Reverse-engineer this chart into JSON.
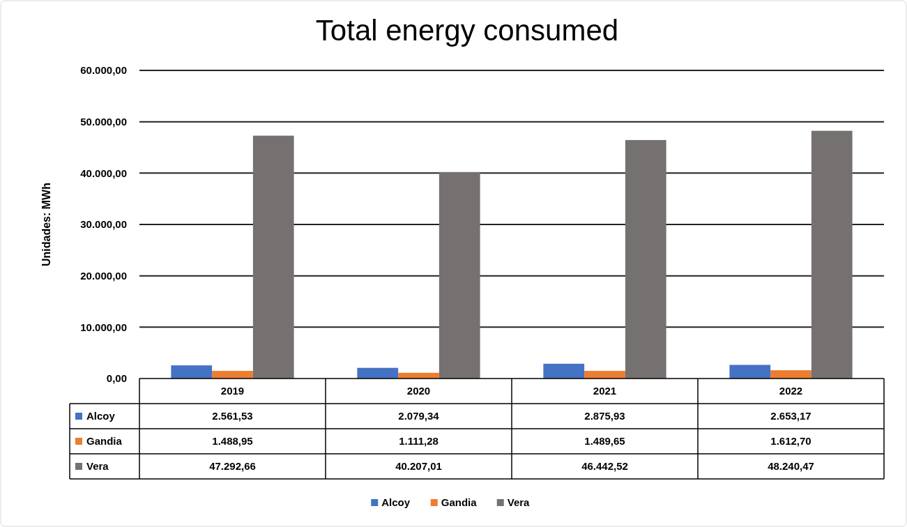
{
  "chart_data": {
    "type": "bar",
    "title": "Total energy consumed",
    "ylabel": "Unidades: MWh",
    "categories": [
      "2019",
      "2020",
      "2021",
      "2022"
    ],
    "series": [
      {
        "name": "Alcoy",
        "color": "#4472c4",
        "values": [
          2561.53,
          2079.34,
          2875.93,
          2653.17
        ],
        "value_labels": [
          "2.561,53",
          "2.079,34",
          "2.875,93",
          "2.653,17"
        ]
      },
      {
        "name": "Gandia",
        "color": "#ed7d31",
        "values": [
          1488.95,
          1111.28,
          1489.65,
          1612.7
        ],
        "value_labels": [
          "1.488,95",
          "1.111,28",
          "1.489,65",
          "1.612,70"
        ]
      },
      {
        "name": "Vera",
        "color": "#767171",
        "values": [
          47292.66,
          40207.01,
          46442.52,
          48240.47
        ],
        "value_labels": [
          "47.292,66",
          "40.207,01",
          "46.442,52",
          "48.240,47"
        ]
      }
    ],
    "ylim": [
      0,
      60000
    ],
    "yticks": [
      {
        "value": 0,
        "label": "0,00"
      },
      {
        "value": 10000,
        "label": "10.000,00"
      },
      {
        "value": 20000,
        "label": "20.000,00"
      },
      {
        "value": 30000,
        "label": "30.000,00"
      },
      {
        "value": 40000,
        "label": "40.000,00"
      },
      {
        "value": 50000,
        "label": "50.000,00"
      },
      {
        "value": 60000,
        "label": "60.000,00"
      }
    ],
    "grid": "y",
    "legend": "bottom"
  }
}
